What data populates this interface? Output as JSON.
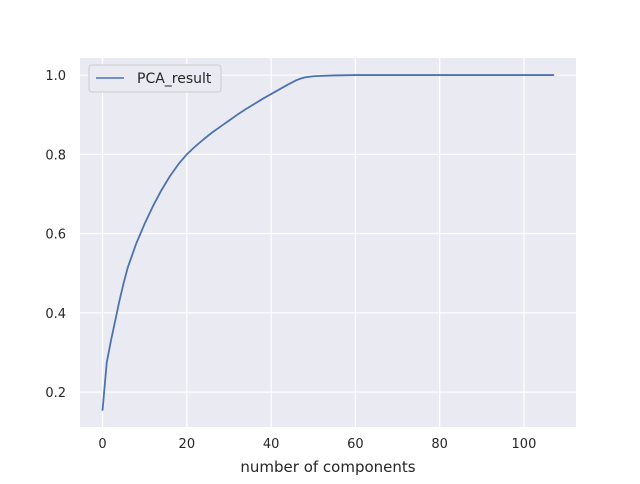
{
  "chart_data": {
    "type": "line",
    "xlabel": "number of components",
    "xlim": [
      -5.35,
      112.35
    ],
    "ylim": [
      0.112,
      1.043
    ],
    "xticks": [
      0,
      20,
      40,
      60,
      80,
      100
    ],
    "yticks": [
      0.2,
      0.4,
      0.6,
      0.8,
      1.0
    ],
    "xtick_labels": [
      "0",
      "20",
      "40",
      "60",
      "80",
      "100"
    ],
    "ytick_labels": [
      "0.2",
      "0.4",
      "0.6",
      "0.8",
      "1.0"
    ],
    "grid": true,
    "legend_position": "upper-left",
    "colors": {
      "background": "#eaeaf2",
      "grid": "#ffffff",
      "line": "#4c72b0"
    },
    "series": [
      {
        "name": "PCA_result",
        "x": [
          0,
          1,
          2,
          3,
          4,
          5,
          6,
          8,
          10,
          12,
          14,
          16,
          18,
          20,
          22,
          24,
          26,
          28,
          30,
          32,
          34,
          36,
          38,
          40,
          42,
          44,
          46,
          47,
          48,
          50,
          52,
          55,
          60,
          70,
          80,
          90,
          100,
          107
        ],
        "y": [
          0.155,
          0.275,
          0.33,
          0.38,
          0.43,
          0.475,
          0.515,
          0.575,
          0.625,
          0.67,
          0.71,
          0.745,
          0.775,
          0.8,
          0.82,
          0.838,
          0.855,
          0.87,
          0.885,
          0.9,
          0.914,
          0.927,
          0.94,
          0.952,
          0.964,
          0.976,
          0.987,
          0.991,
          0.994,
          0.997,
          0.998,
          0.999,
          1.0,
          1.0,
          1.0,
          1.0,
          1.0,
          1.0
        ]
      }
    ]
  }
}
